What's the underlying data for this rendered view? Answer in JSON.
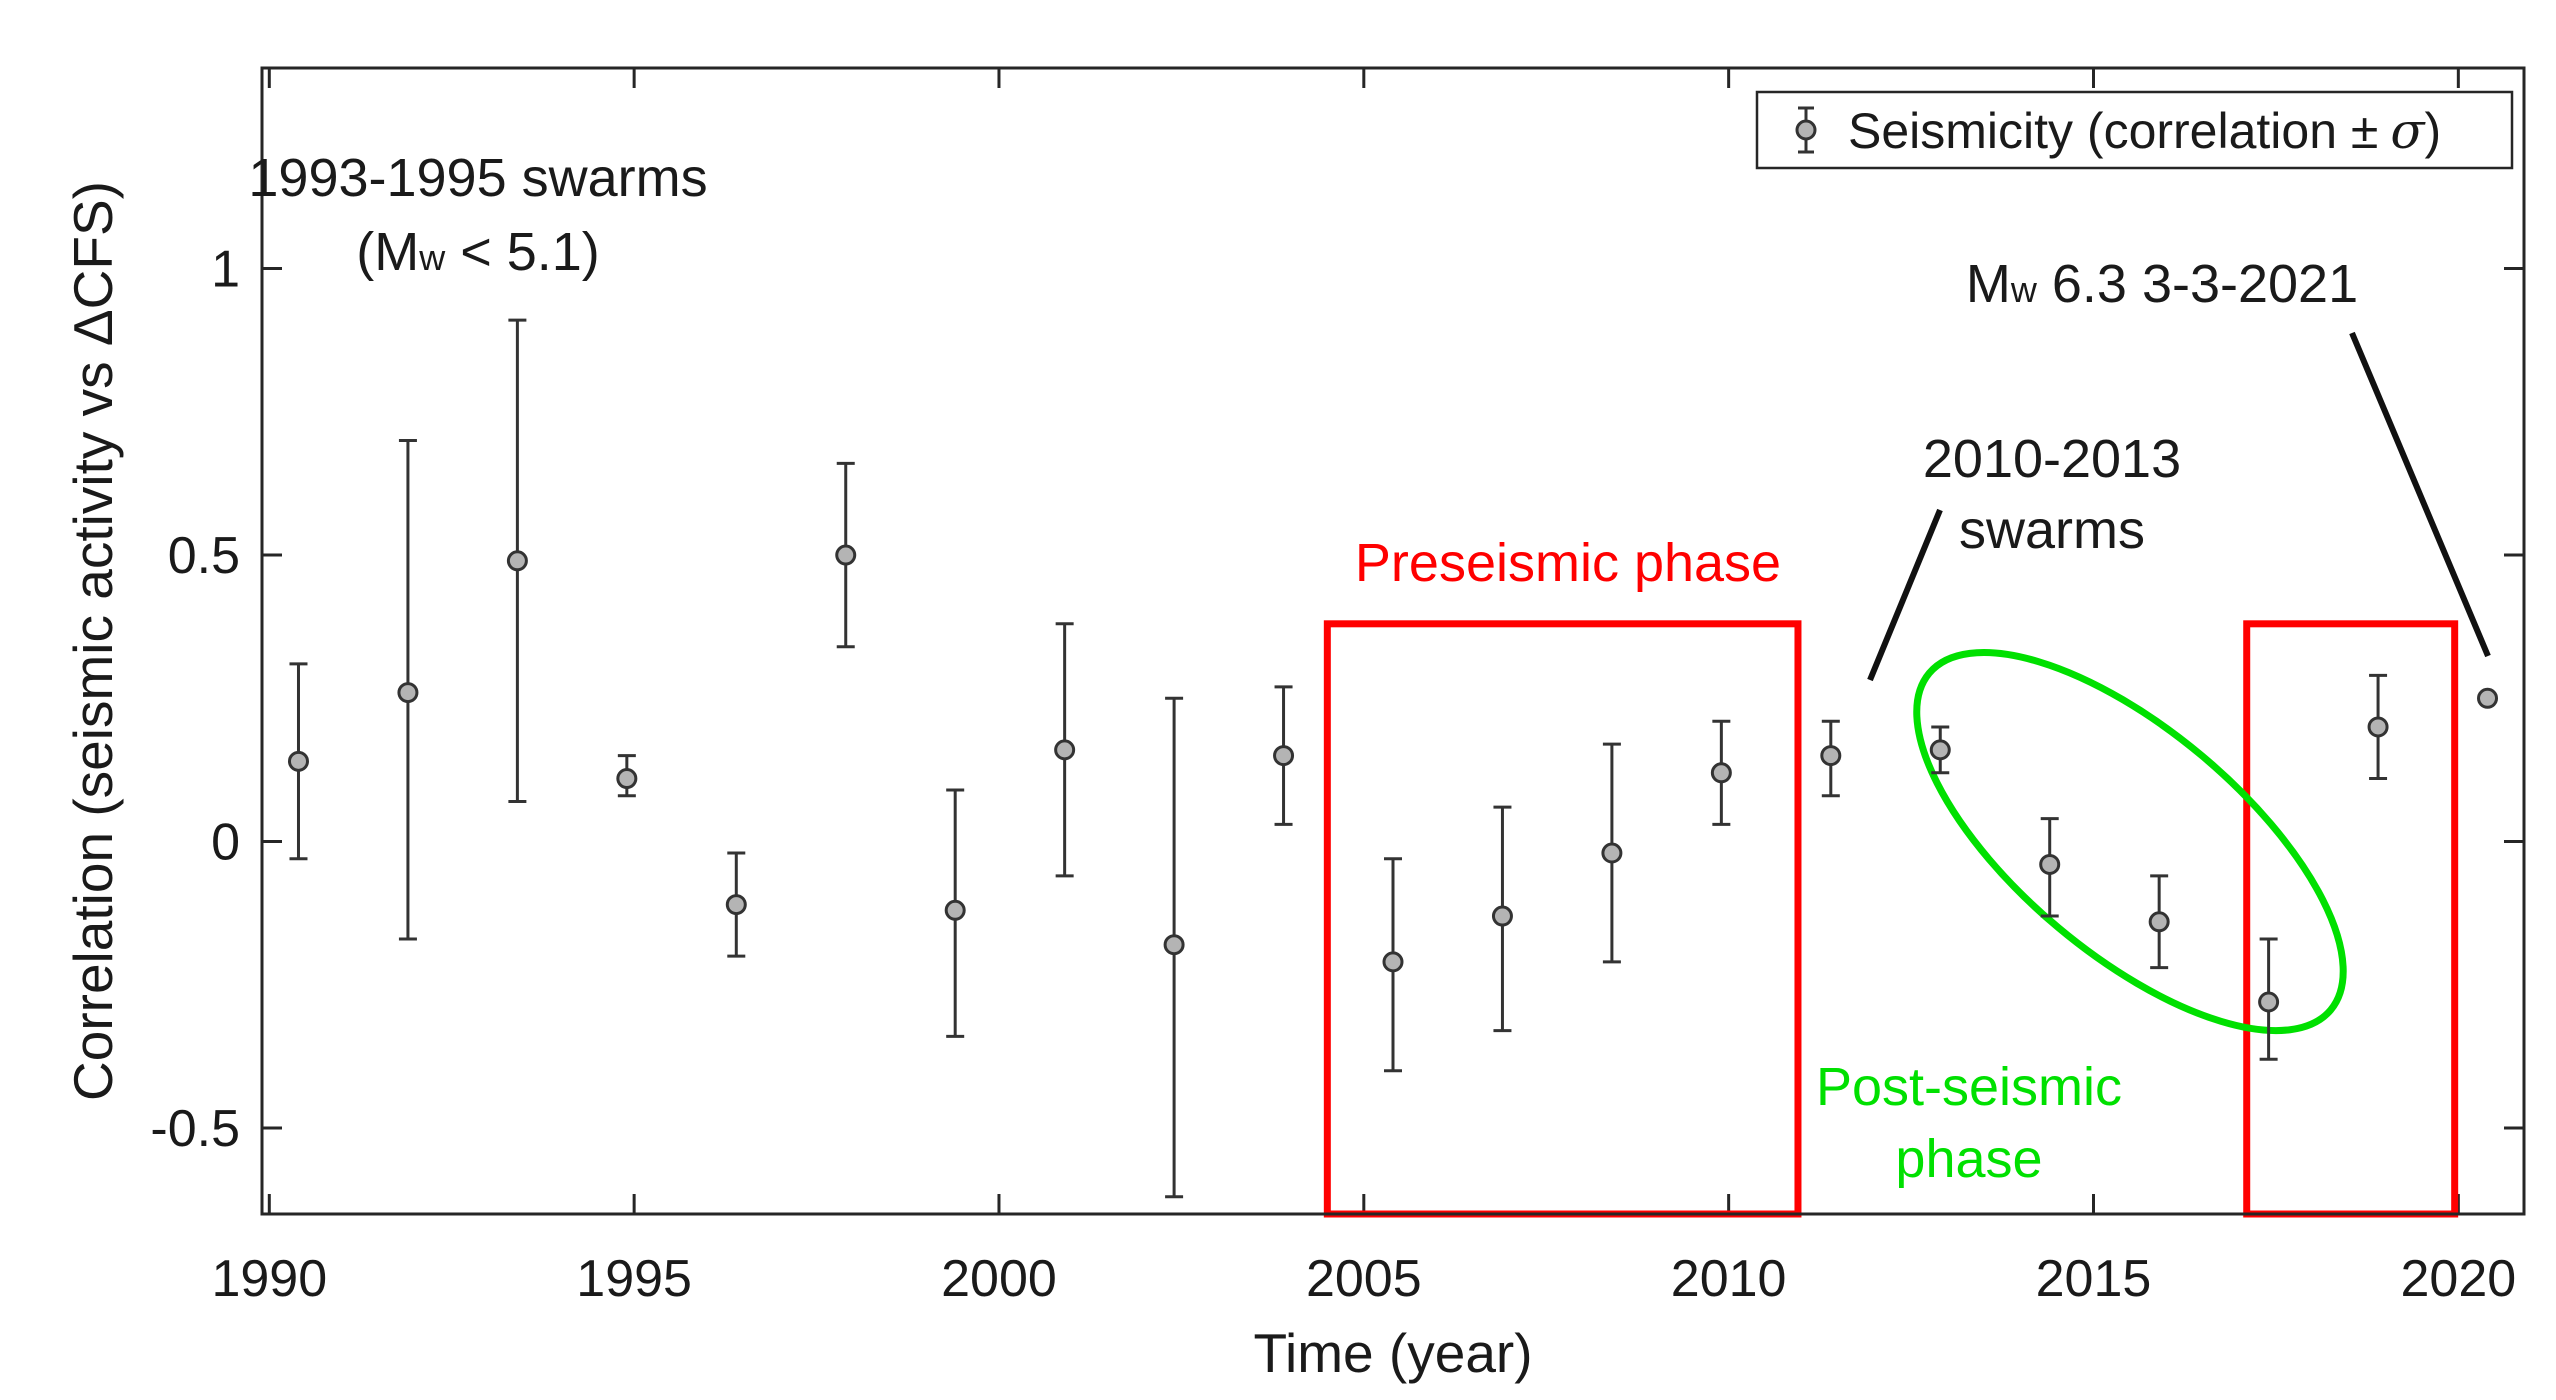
{
  "chart_data": {
    "type": "scatter",
    "title": "",
    "xlabel": "Time (year)",
    "ylabel": "Correlation (seismic activity vs ΔCFS)",
    "xlim": [
      1989.9,
      2020.9
    ],
    "ylim": [
      -0.65,
      1.35
    ],
    "xticks": [
      1990,
      1995,
      2000,
      2005,
      2010,
      2015,
      2020
    ],
    "yticks": [
      -0.5,
      0,
      0.5,
      1
    ],
    "ytick_labels": [
      "-0.5",
      "0",
      "0.5",
      "1"
    ],
    "legend": {
      "location": "top-right",
      "label_prefix": "Seismicity (correlation ",
      "label_pm": "±",
      "label_sigma": "σ",
      "label_suffix": ")"
    },
    "series": [
      {
        "name": "Seismicity (correlation ± σ)",
        "x": [
          1990.4,
          1991.9,
          1993.4,
          1994.9,
          1996.4,
          1997.9,
          1999.4,
          2000.9,
          2002.4,
          2003.9,
          2005.4,
          2006.9,
          2008.4,
          2009.9,
          2011.4,
          2012.9,
          2014.4,
          2015.9,
          2017.4,
          2018.9,
          2020.4
        ],
        "y": [
          0.14,
          0.26,
          0.49,
          0.11,
          -0.11,
          0.5,
          -0.12,
          0.16,
          -0.18,
          0.15,
          -0.21,
          -0.13,
          -0.02,
          0.12,
          0.15,
          0.16,
          -0.04,
          -0.14,
          -0.28,
          0.2,
          0.25
        ],
        "y_low": [
          -0.03,
          -0.17,
          0.07,
          0.08,
          -0.2,
          0.34,
          -0.34,
          -0.06,
          -0.62,
          0.03,
          -0.4,
          -0.33,
          -0.21,
          0.03,
          0.08,
          0.12,
          -0.13,
          -0.22,
          -0.38,
          0.11,
          0.25
        ],
        "y_high": [
          0.31,
          0.7,
          0.91,
          0.15,
          -0.02,
          0.66,
          0.09,
          0.38,
          0.25,
          0.27,
          -0.03,
          0.06,
          0.17,
          0.21,
          0.21,
          0.2,
          0.04,
          -0.06,
          -0.17,
          0.29,
          0.25
        ]
      }
    ],
    "annotations": {
      "swarms_1993": {
        "line1": "1993-1995 swarms",
        "open": "(M",
        "sub": "w",
        "close": " < 5.1)"
      },
      "event_2021": {
        "m": "M",
        "sub": "w",
        "rest": " 6.3 3-3-2021"
      },
      "swarms_2010": {
        "line1": "2010-2013",
        "line2": "swarms"
      },
      "preseismic": "Preseismic phase",
      "postseismic": {
        "line1": "Post-seismic",
        "line2": "phase"
      }
    },
    "regions": {
      "preseismic_box": {
        "x": [
          2004.5,
          2010.95
        ],
        "y": [
          -0.65,
          0.38
        ],
        "color": "#ff0000"
      },
      "postseismic_box": {
        "x": [
          2017.1,
          2019.95
        ],
        "y": [
          -0.65,
          0.38
        ],
        "color": "#ff0000"
      },
      "postseismic_ellipse": {
        "center": [
          2015.5,
          0.0
        ],
        "color": "#00e000"
      }
    },
    "colors": {
      "marker_fill": "#b4b4b4",
      "marker_edge": "#333333",
      "errorbar": "#333333",
      "axes": "#262626",
      "red": "#ff0000",
      "green": "#00e000"
    }
  }
}
